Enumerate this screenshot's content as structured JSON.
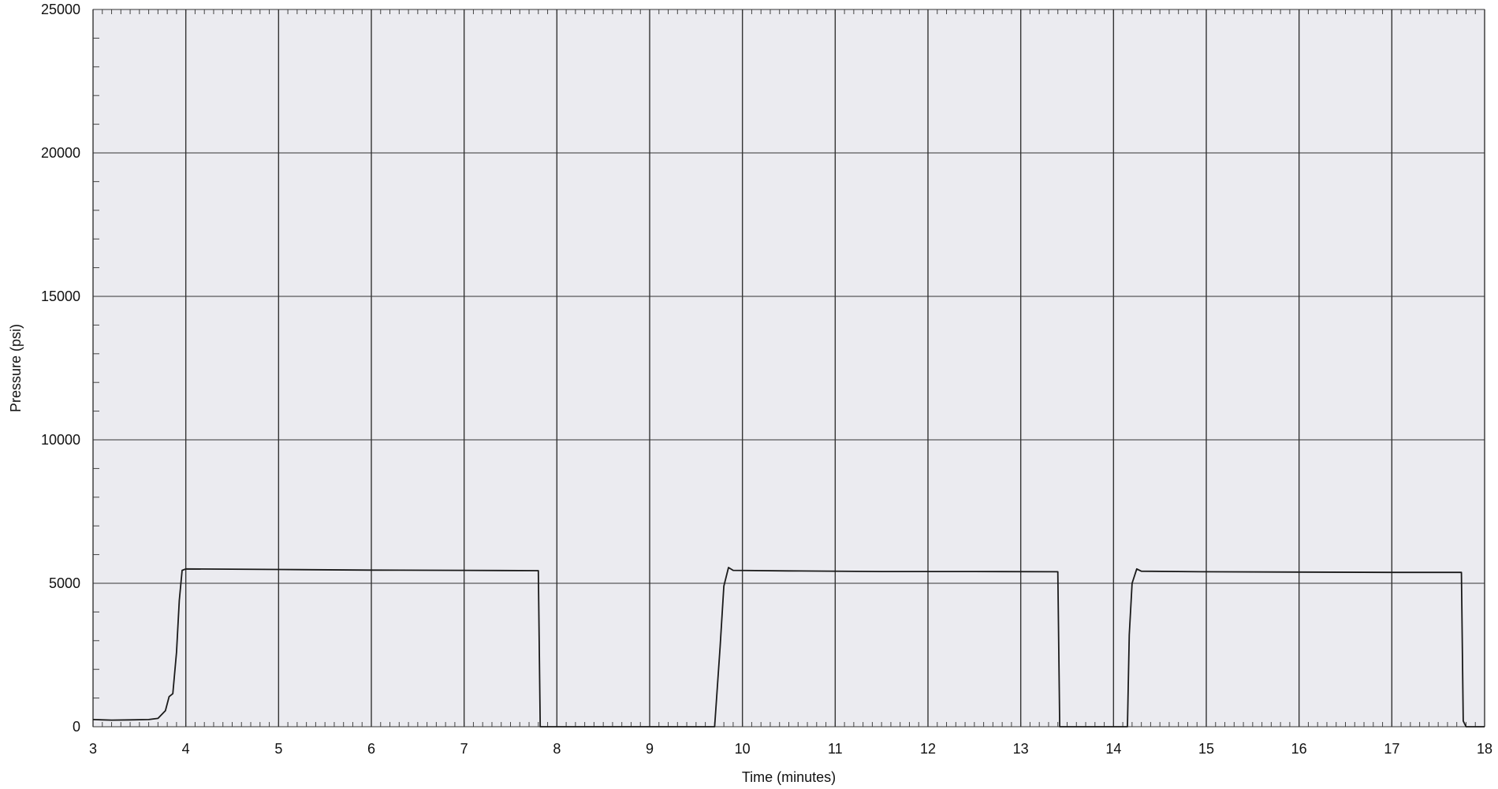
{
  "chart_data": {
    "type": "line",
    "title": "",
    "xlabel": "Time (minutes)",
    "ylabel": "Pressure (psi)",
    "xlim": [
      3,
      18
    ],
    "ylim": [
      0,
      25000
    ],
    "x_ticks": [
      "3",
      "4",
      "5",
      "6",
      "7",
      "8",
      "9",
      "10",
      "11",
      "12",
      "13",
      "14",
      "15",
      "16",
      "17",
      "18"
    ],
    "y_ticks": [
      "0",
      "5000",
      "10000",
      "15000",
      "20000",
      "25000"
    ],
    "grid": true,
    "background_color": "#ebebf0",
    "grid_color": "#333333",
    "line_color": "#1a1a1a",
    "series": [
      {
        "points": [
          [
            3.0,
            250
          ],
          [
            3.2,
            230
          ],
          [
            3.4,
            240
          ],
          [
            3.6,
            250
          ],
          [
            3.7,
            290
          ],
          [
            3.78,
            560
          ],
          [
            3.82,
            1050
          ],
          [
            3.86,
            1150
          ],
          [
            3.9,
            2600
          ],
          [
            3.93,
            4400
          ],
          [
            3.96,
            5450
          ],
          [
            4.0,
            5500
          ],
          [
            5.0,
            5480
          ],
          [
            6.0,
            5460
          ],
          [
            7.0,
            5450
          ],
          [
            7.8,
            5440
          ],
          [
            7.82,
            0
          ],
          [
            9.7,
            0
          ],
          [
            9.76,
            2800
          ],
          [
            9.8,
            4900
          ],
          [
            9.85,
            5550
          ],
          [
            9.9,
            5450
          ],
          [
            10.5,
            5430
          ],
          [
            11.5,
            5410
          ],
          [
            12.5,
            5410
          ],
          [
            13.4,
            5400
          ],
          [
            13.42,
            0
          ],
          [
            14.15,
            0
          ],
          [
            14.17,
            3200
          ],
          [
            14.2,
            5000
          ],
          [
            14.25,
            5500
          ],
          [
            14.3,
            5420
          ],
          [
            15.0,
            5400
          ],
          [
            16.0,
            5390
          ],
          [
            17.0,
            5380
          ],
          [
            17.75,
            5380
          ],
          [
            17.77,
            200
          ],
          [
            17.8,
            0
          ],
          [
            18.0,
            0
          ]
        ]
      }
    ]
  }
}
